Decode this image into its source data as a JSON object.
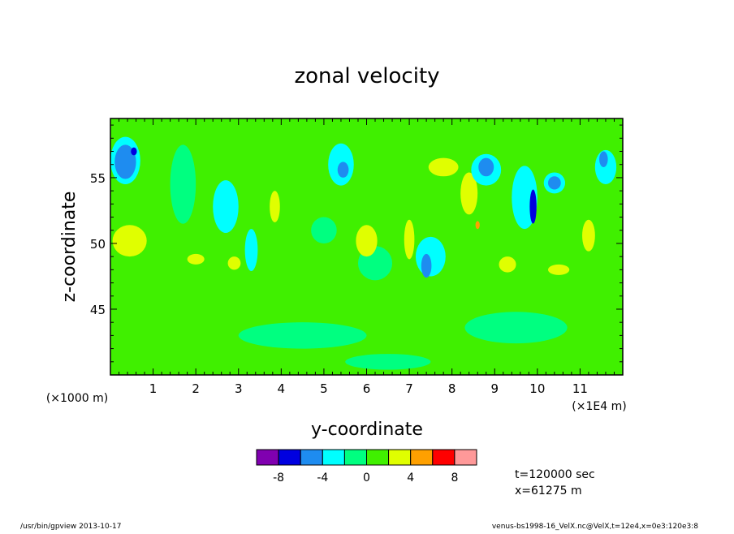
{
  "chart_data": {
    "type": "heatmap",
    "title": "zonal velocity",
    "xlabel": "y-coordinate",
    "ylabel": "z-coordinate",
    "x_scale_note": "(×1E4 m)",
    "y_scale_note": "(×1000 m)",
    "x_ticks": [
      "1",
      "2",
      "3",
      "4",
      "5",
      "6",
      "7",
      "8",
      "9",
      "10",
      "11"
    ],
    "y_ticks": [
      "45",
      "50",
      "55"
    ],
    "xlim": [
      0,
      12
    ],
    "ylim": [
      40,
      59.5
    ],
    "colorbar": {
      "colors": [
        "#8000b0",
        "#0000e0",
        "#1e8cf0",
        "#00ffff",
        "#00ff80",
        "#40f000",
        "#e0ff00",
        "#ffa000",
        "#ff0000",
        "#ff9999"
      ],
      "tick_labels": [
        "-8",
        "-4",
        "0",
        "4",
        "8"
      ]
    },
    "background_color": "#40f000",
    "regions": [
      {
        "x": 0.35,
        "y": 56.3,
        "rx": 0.35,
        "ry": 1.8,
        "color": "#00ffff"
      },
      {
        "x": 0.35,
        "y": 56.2,
        "rx": 0.25,
        "ry": 1.3,
        "color": "#1e8cf0"
      },
      {
        "x": 0.55,
        "y": 57.0,
        "rx": 0.07,
        "ry": 0.3,
        "color": "#0000e0"
      },
      {
        "x": 0.45,
        "y": 50.2,
        "rx": 0.4,
        "ry": 1.2,
        "color": "#e0ff00"
      },
      {
        "x": 1.7,
        "y": 54.5,
        "rx": 0.3,
        "ry": 3.0,
        "color": "#00ff80"
      },
      {
        "x": 2.7,
        "y": 52.8,
        "rx": 0.3,
        "ry": 2.0,
        "color": "#00ffff"
      },
      {
        "x": 3.3,
        "y": 49.5,
        "rx": 0.15,
        "ry": 1.6,
        "color": "#00ffff"
      },
      {
        "x": 3.85,
        "y": 52.8,
        "rx": 0.12,
        "ry": 1.2,
        "color": "#e0ff00"
      },
      {
        "x": 5.4,
        "y": 56.0,
        "rx": 0.3,
        "ry": 1.6,
        "color": "#00ffff"
      },
      {
        "x": 5.45,
        "y": 55.6,
        "rx": 0.13,
        "ry": 0.6,
        "color": "#1e8cf0"
      },
      {
        "x": 6.2,
        "y": 48.5,
        "rx": 0.4,
        "ry": 1.3,
        "color": "#00ff80"
      },
      {
        "x": 7.5,
        "y": 49.0,
        "rx": 0.35,
        "ry": 1.5,
        "color": "#00ffff"
      },
      {
        "x": 7.4,
        "y": 48.3,
        "rx": 0.12,
        "ry": 0.9,
        "color": "#1e8cf0"
      },
      {
        "x": 7.0,
        "y": 50.3,
        "rx": 0.12,
        "ry": 1.5,
        "color": "#e0ff00"
      },
      {
        "x": 7.8,
        "y": 55.8,
        "rx": 0.35,
        "ry": 0.7,
        "color": "#e0ff00"
      },
      {
        "x": 8.4,
        "y": 53.8,
        "rx": 0.2,
        "ry": 1.6,
        "color": "#e0ff00"
      },
      {
        "x": 8.6,
        "y": 51.4,
        "rx": 0.05,
        "ry": 0.3,
        "color": "#ffa000"
      },
      {
        "x": 8.8,
        "y": 55.6,
        "rx": 0.35,
        "ry": 1.2,
        "color": "#00ffff"
      },
      {
        "x": 8.8,
        "y": 55.8,
        "rx": 0.18,
        "ry": 0.7,
        "color": "#1e8cf0"
      },
      {
        "x": 9.7,
        "y": 53.5,
        "rx": 0.3,
        "ry": 2.4,
        "color": "#00ffff"
      },
      {
        "x": 9.9,
        "y": 52.8,
        "rx": 0.08,
        "ry": 1.3,
        "color": "#0000e0"
      },
      {
        "x": 10.4,
        "y": 54.6,
        "rx": 0.25,
        "ry": 0.8,
        "color": "#00ffff"
      },
      {
        "x": 10.4,
        "y": 54.6,
        "rx": 0.15,
        "ry": 0.5,
        "color": "#1e8cf0"
      },
      {
        "x": 11.2,
        "y": 50.6,
        "rx": 0.15,
        "ry": 1.2,
        "color": "#e0ff00"
      },
      {
        "x": 11.6,
        "y": 55.8,
        "rx": 0.25,
        "ry": 1.3,
        "color": "#00ffff"
      },
      {
        "x": 11.55,
        "y": 56.4,
        "rx": 0.1,
        "ry": 0.6,
        "color": "#1e8cf0"
      },
      {
        "x": 2.0,
        "y": 48.8,
        "rx": 0.2,
        "ry": 0.4,
        "color": "#e0ff00"
      },
      {
        "x": 2.9,
        "y": 48.5,
        "rx": 0.15,
        "ry": 0.5,
        "color": "#e0ff00"
      },
      {
        "x": 5.0,
        "y": 51.0,
        "rx": 0.3,
        "ry": 1.0,
        "color": "#00ff80"
      },
      {
        "x": 6.0,
        "y": 50.2,
        "rx": 0.25,
        "ry": 1.2,
        "color": "#e0ff00"
      },
      {
        "x": 9.3,
        "y": 48.4,
        "rx": 0.2,
        "ry": 0.6,
        "color": "#e0ff00"
      },
      {
        "x": 10.5,
        "y": 48.0,
        "rx": 0.25,
        "ry": 0.4,
        "color": "#e0ff00"
      },
      {
        "x": 4.5,
        "y": 43.0,
        "rx": 1.5,
        "ry": 1.0,
        "color": "#00ff80"
      },
      {
        "x": 9.5,
        "y": 43.6,
        "rx": 1.2,
        "ry": 1.2,
        "color": "#00ff80"
      },
      {
        "x": 6.5,
        "y": 41.0,
        "rx": 1.0,
        "ry": 0.6,
        "color": "#00ff80"
      }
    ]
  },
  "time_label": "t=120000 sec",
  "x_label_info": "x=61275 m",
  "footer_left": "/usr/bin/gpview  2013-10-17",
  "footer_right": "venus-bs1998-16_VelX.nc@VelX,t=12e4,x=0e3:120e3:8"
}
